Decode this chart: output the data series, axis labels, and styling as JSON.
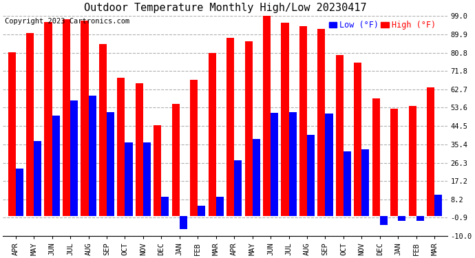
{
  "title": "Outdoor Temperature Monthly High/Low 20230417",
  "copyright": "Copyright 2023 Cartronics.com",
  "legend_low": "Low (°F)",
  "legend_high": "High (°F)",
  "months": [
    "APR",
    "MAY",
    "JUN",
    "JUL",
    "AUG",
    "SEP",
    "OCT",
    "NOV",
    "DEC",
    "JAN",
    "FEB",
    "MAR",
    "APR",
    "MAY",
    "JUN",
    "JUL",
    "AUG",
    "SEP",
    "OCT",
    "NOV",
    "DEC",
    "JAN",
    "FEB",
    "MAR"
  ],
  "high": [
    81.0,
    90.5,
    96.0,
    97.5,
    96.5,
    85.0,
    68.5,
    65.5,
    45.0,
    55.5,
    67.5,
    80.5,
    88.0,
    86.5,
    99.5,
    95.5,
    94.0,
    92.5,
    79.5,
    76.0,
    58.0,
    53.0,
    54.5,
    63.5
  ],
  "low": [
    23.5,
    37.0,
    49.5,
    57.0,
    59.5,
    51.5,
    36.5,
    36.5,
    9.5,
    -6.5,
    5.0,
    9.5,
    27.5,
    38.0,
    51.0,
    51.5,
    40.0,
    50.5,
    32.0,
    33.0,
    -4.5,
    -2.5,
    -2.5,
    10.5
  ],
  "bar_width": 0.42,
  "high_color": "#ff0000",
  "low_color": "#0000ff",
  "background_color": "#ffffff",
  "grid_color": "#b0b0b0",
  "ylim_min": -10.0,
  "ylim_max": 99.0,
  "yticks": [
    -10.0,
    -0.9,
    8.2,
    17.2,
    26.3,
    35.4,
    44.5,
    53.6,
    62.7,
    71.8,
    80.8,
    89.9,
    99.0
  ],
  "title_fontsize": 11,
  "tick_fontsize": 7.5,
  "legend_fontsize": 8.5,
  "copyright_fontsize": 7.5
}
